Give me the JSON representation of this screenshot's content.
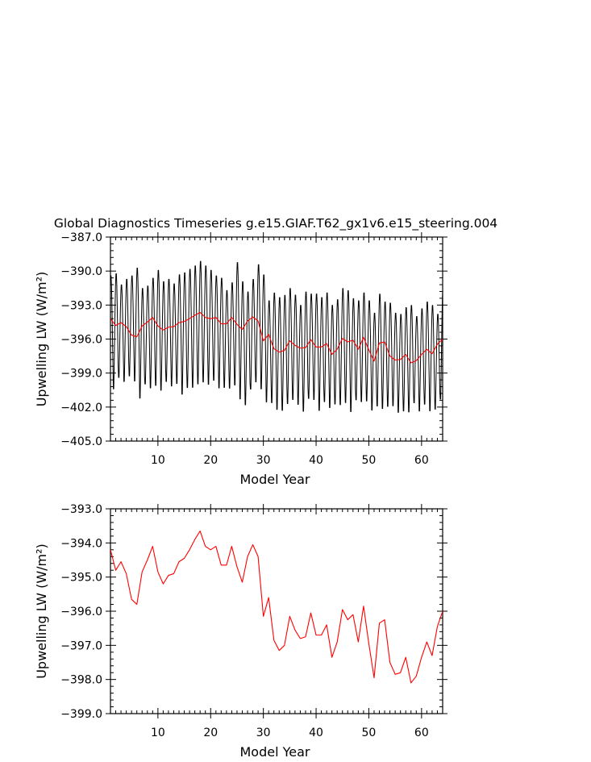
{
  "title": "Global Diagnostics Timeseries g.e15.GIAF.T62_gx1v6.e15_steering.004",
  "colors": {
    "monthly": "#000000",
    "annual": "#ff0000",
    "axes": "#000000",
    "background": "#ffffff"
  },
  "chart_data": [
    {
      "type": "line",
      "xlabel": "Model Year",
      "ylabel": "Upwelling LW (W/m²)",
      "xlim": [
        1,
        64
      ],
      "ylim": [
        -405.0,
        -387.0
      ],
      "xticks": [
        10,
        20,
        30,
        40,
        50,
        60
      ],
      "yticks": [
        -405.0,
        -402.0,
        -399.0,
        -396.0,
        -393.0,
        -390.0,
        -387.0
      ],
      "ytick_labels": [
        "−405.0",
        "−402.0",
        "−399.0",
        "−396.0",
        "−393.0",
        "−390.0",
        "−387.0"
      ],
      "grid": false,
      "series": [
        {
          "color": "#000000",
          "resolution": "monthly",
          "annual_cycle_max": [
            -390.3,
            -390.1,
            -391.1,
            -390.6,
            -390.3,
            -389.6,
            -391.4,
            -391.2,
            -390.5,
            -389.8,
            -390.8,
            -390.6,
            -391.0,
            -390.2,
            -390.0,
            -389.7,
            -389.4,
            -389.0,
            -389.4,
            -389.8,
            -390.3,
            -390.5,
            -391.6,
            -390.9,
            -389.1,
            -390.8,
            -391.7,
            -390.6,
            -389.3,
            -390.2,
            -392.5,
            -391.8,
            -392.2,
            -392.0,
            -391.4,
            -392.0,
            -392.9,
            -391.7,
            -391.9,
            -391.9,
            -392.2,
            -391.8,
            -392.9,
            -392.4,
            -391.4,
            -391.6,
            -392.3,
            -392.5,
            -391.8,
            -392.5,
            -393.6,
            -391.9,
            -392.6,
            -392.7,
            -393.6,
            -393.7,
            -393.1,
            -392.9,
            -393.9,
            -393.2,
            -392.6,
            -392.9,
            -393.7,
            -391.1
          ],
          "annual_cycle_min": [
            -400.3,
            -400.9,
            -399.8,
            -400.2,
            -399.7,
            -400.2,
            -401.7,
            -400.4,
            -400.8,
            -400.6,
            -401.0,
            -400.2,
            -400.6,
            -400.4,
            -401.4,
            -400.8,
            -400.8,
            -400.5,
            -400.3,
            -400.5,
            -400.1,
            -400.8,
            -400.7,
            -400.8,
            -400.6,
            -401.8,
            -402.3,
            -400.9,
            -400.3,
            -400.9,
            -402.0,
            -402.1,
            -402.7,
            -402.8,
            -402.2,
            -401.8,
            -402.2,
            -402.9,
            -401.7,
            -401.8,
            -402.8,
            -402.0,
            -402.5,
            -402.2,
            -402.3,
            -402.1,
            -402.9,
            -401.8,
            -402.0,
            -401.9,
            -402.7,
            -402.4,
            -402.6,
            -402.4,
            -402.3,
            -402.9,
            -402.8,
            -402.9,
            -402.0,
            -402.8,
            -402.2,
            -402.8,
            -402.6,
            -401.8
          ]
        },
        {
          "color": "#ff0000",
          "resolution": "annual",
          "x": [
            1,
            2,
            3,
            4,
            5,
            6,
            7,
            8,
            9,
            10,
            11,
            12,
            13,
            14,
            15,
            16,
            17,
            18,
            19,
            20,
            21,
            22,
            23,
            24,
            25,
            26,
            27,
            28,
            29,
            30,
            31,
            32,
            33,
            34,
            35,
            36,
            37,
            38,
            39,
            40,
            41,
            42,
            43,
            44,
            45,
            46,
            47,
            48,
            49,
            50,
            51,
            52,
            53,
            54,
            55,
            56,
            57,
            58,
            59,
            60,
            61,
            62,
            63,
            64
          ],
          "values": [
            -394.2,
            -394.8,
            -394.55,
            -394.9,
            -395.65,
            -395.8,
            -394.85,
            -394.5,
            -394.1,
            -394.85,
            -395.2,
            -394.95,
            -394.9,
            -394.55,
            -394.45,
            -394.2,
            -393.9,
            -393.65,
            -394.1,
            -394.2,
            -394.1,
            -394.65,
            -394.65,
            -394.1,
            -394.7,
            -395.15,
            -394.4,
            -394.05,
            -394.4,
            -396.15,
            -395.6,
            -396.85,
            -397.15,
            -397.0,
            -396.15,
            -396.55,
            -396.8,
            -396.75,
            -396.05,
            -396.7,
            -396.7,
            -396.4,
            -397.35,
            -396.9,
            -395.95,
            -396.25,
            -396.1,
            -396.9,
            -395.85,
            -396.95,
            -397.95,
            -396.35,
            -396.25,
            -397.5,
            -397.85,
            -397.8,
            -397.35,
            -398.1,
            -397.9,
            -397.35,
            -396.9,
            -397.3,
            -396.45,
            -396.0
          ]
        }
      ]
    },
    {
      "type": "line",
      "xlabel": "Model Year",
      "ylabel": "Upwelling LW (W/m²)",
      "xlim": [
        1,
        64
      ],
      "ylim": [
        -399.0,
        -393.0
      ],
      "xticks": [
        10,
        20,
        30,
        40,
        50,
        60
      ],
      "yticks": [
        -399.0,
        -398.0,
        -397.0,
        -396.0,
        -395.0,
        -394.0,
        -393.0
      ],
      "ytick_labels": [
        "−399.0",
        "−398.0",
        "−397.0",
        "−396.0",
        "−395.0",
        "−394.0",
        "−393.0"
      ],
      "grid": false,
      "series": [
        {
          "color": "#ff0000",
          "resolution": "annual",
          "x": [
            1,
            2,
            3,
            4,
            5,
            6,
            7,
            8,
            9,
            10,
            11,
            12,
            13,
            14,
            15,
            16,
            17,
            18,
            19,
            20,
            21,
            22,
            23,
            24,
            25,
            26,
            27,
            28,
            29,
            30,
            31,
            32,
            33,
            34,
            35,
            36,
            37,
            38,
            39,
            40,
            41,
            42,
            43,
            44,
            45,
            46,
            47,
            48,
            49,
            50,
            51,
            52,
            53,
            54,
            55,
            56,
            57,
            58,
            59,
            60,
            61,
            62,
            63,
            64
          ],
          "values": [
            -394.2,
            -394.8,
            -394.55,
            -394.9,
            -395.65,
            -395.8,
            -394.85,
            -394.5,
            -394.1,
            -394.85,
            -395.2,
            -394.95,
            -394.9,
            -394.55,
            -394.45,
            -394.2,
            -393.9,
            -393.65,
            -394.1,
            -394.2,
            -394.1,
            -394.65,
            -394.65,
            -394.1,
            -394.7,
            -395.15,
            -394.4,
            -394.05,
            -394.4,
            -396.15,
            -395.6,
            -396.85,
            -397.15,
            -397.0,
            -396.15,
            -396.55,
            -396.8,
            -396.75,
            -396.05,
            -396.7,
            -396.7,
            -396.4,
            -397.35,
            -396.9,
            -395.95,
            -396.25,
            -396.1,
            -396.9,
            -395.85,
            -396.95,
            -397.95,
            -396.35,
            -396.25,
            -397.5,
            -397.85,
            -397.8,
            -397.35,
            -398.1,
            -397.9,
            -397.35,
            -396.9,
            -397.3,
            -396.45,
            -396.0
          ]
        }
      ]
    }
  ]
}
